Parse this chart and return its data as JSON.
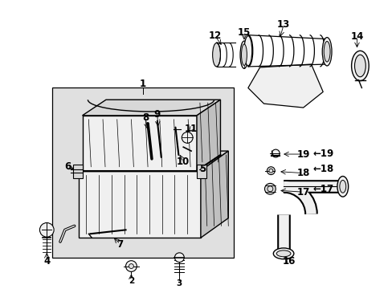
{
  "bg_color": "#ffffff",
  "figsize": [
    4.89,
    3.6
  ],
  "dpi": 100,
  "diagram_bg": "#e0e0e0",
  "line_color": "#000000",
  "part_fill": "#f0f0f0",
  "part_fill2": "#d8d8d8",
  "part_fill3": "#c0c0c0"
}
